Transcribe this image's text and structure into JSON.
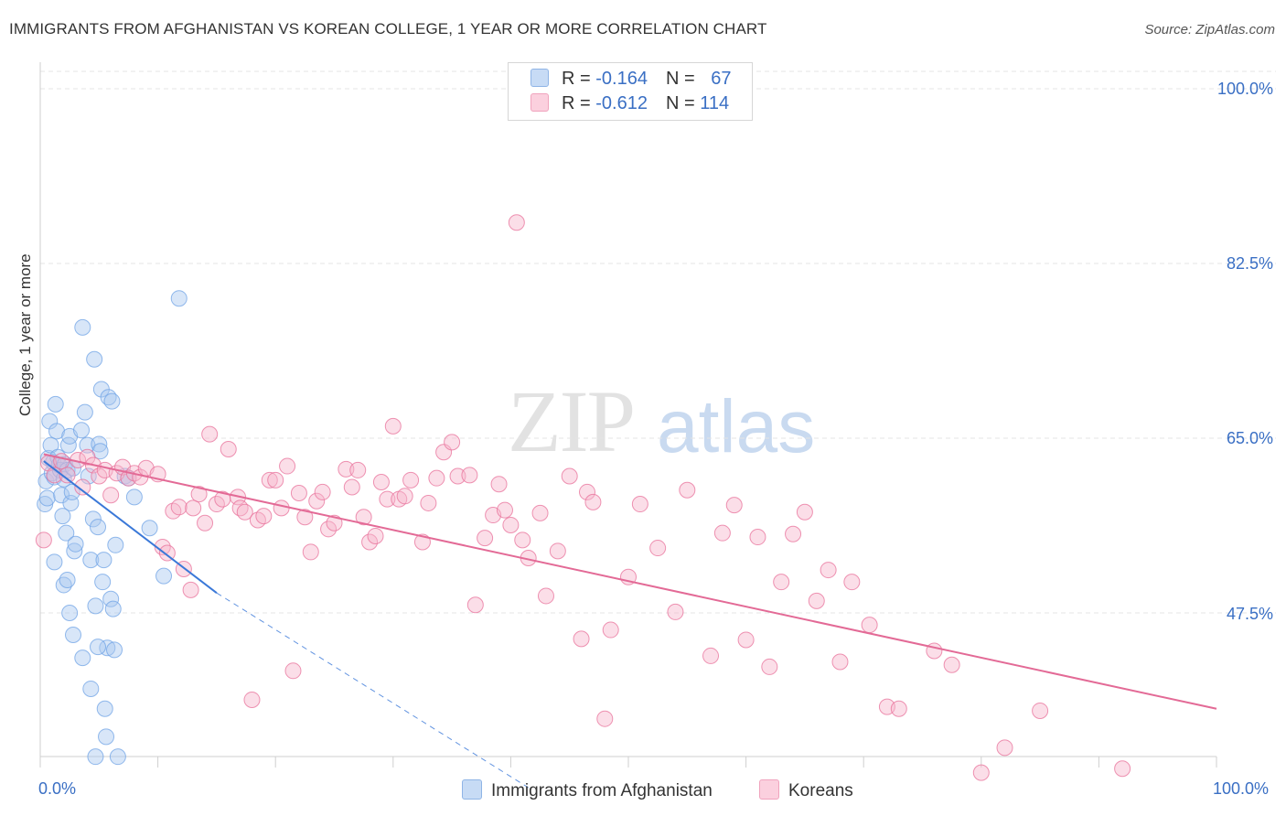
{
  "title": "IMMIGRANTS FROM AFGHANISTAN VS KOREAN COLLEGE, 1 YEAR OR MORE CORRELATION CHART",
  "source": "Source: ZipAtlas.com",
  "watermark": {
    "zip": "ZIP",
    "atlas": "atlas"
  },
  "legend": {
    "rows": [
      {
        "r_label": "R = ",
        "r_value": "-0.164",
        "n_label": "N = ",
        "n_value": "67",
        "color": "#a9c8f0"
      },
      {
        "r_label": "R = ",
        "r_value": "-0.612",
        "n_label": "N = ",
        "n_value": "114",
        "color": "#f7b6cb"
      }
    ]
  },
  "bottom_legend": [
    {
      "label": "Immigrants from Afghanistan",
      "color": "#a9c8f0"
    },
    {
      "label": "Koreans",
      "color": "#f7b6cb"
    }
  ],
  "chart_data": {
    "type": "scatter",
    "title": "IMMIGRANTS FROM AFGHANISTAN VS KOREAN COLLEGE, 1 YEAR OR MORE CORRELATION CHART",
    "xlabel": "",
    "ylabel": "College, 1 year or more",
    "xlim": [
      0,
      100
    ],
    "ylim": [
      30,
      100
    ],
    "x_tick_labels": [
      "0.0%",
      "100.0%"
    ],
    "y_ticks": [
      47.5,
      65.0,
      82.5,
      100.0
    ],
    "y_tick_labels": [
      "47.5%",
      "65.0%",
      "82.5%",
      "100.0%"
    ],
    "grid": true,
    "legend_position": "top-center",
    "series": [
      {
        "name": "Immigrants from Afghanistan",
        "color": "#6fa3e6",
        "fill": "#a9c8f0",
        "r": -0.164,
        "n": 67,
        "trend": {
          "x": [
            0.3,
            15.0
          ],
          "y": [
            62.7,
            49.5
          ],
          "dashed_extension_to": [
            41.5,
            30.0
          ]
        },
        "points": [
          [
            0.4,
            58.4
          ],
          [
            0.5,
            60.7
          ],
          [
            0.6,
            59.0
          ],
          [
            0.7,
            63.0
          ],
          [
            0.8,
            66.7
          ],
          [
            0.9,
            64.3
          ],
          [
            1.0,
            61.5
          ],
          [
            1.1,
            62.6
          ],
          [
            1.2,
            61.1
          ],
          [
            1.3,
            68.4
          ],
          [
            1.4,
            65.7
          ],
          [
            1.5,
            63.1
          ],
          [
            1.6,
            62.3
          ],
          [
            1.7,
            61.8
          ],
          [
            1.8,
            59.3
          ],
          [
            1.9,
            57.2
          ],
          [
            2.0,
            60.9
          ],
          [
            2.1,
            62.4
          ],
          [
            2.2,
            55.5
          ],
          [
            2.3,
            61.8
          ],
          [
            2.4,
            64.3
          ],
          [
            2.5,
            65.2
          ],
          [
            2.6,
            58.5
          ],
          [
            2.7,
            59.6
          ],
          [
            2.8,
            62.0
          ],
          [
            2.9,
            53.7
          ],
          [
            3.0,
            54.4
          ],
          [
            2.0,
            50.3
          ],
          [
            2.3,
            50.8
          ],
          [
            2.5,
            47.5
          ],
          [
            2.8,
            45.3
          ],
          [
            3.5,
            65.8
          ],
          [
            3.8,
            67.6
          ],
          [
            4.0,
            64.3
          ],
          [
            4.1,
            61.2
          ],
          [
            4.3,
            52.8
          ],
          [
            4.5,
            56.9
          ],
          [
            4.7,
            48.2
          ],
          [
            4.9,
            56.1
          ],
          [
            5.0,
            64.4
          ],
          [
            5.1,
            63.7
          ],
          [
            5.2,
            69.9
          ],
          [
            5.3,
            50.6
          ],
          [
            5.4,
            52.8
          ],
          [
            5.5,
            37.9
          ],
          [
            5.6,
            35.1
          ],
          [
            5.7,
            44.0
          ],
          [
            5.8,
            69.1
          ],
          [
            6.0,
            48.9
          ],
          [
            6.1,
            68.7
          ],
          [
            6.2,
            47.9
          ],
          [
            6.3,
            43.8
          ],
          [
            6.4,
            54.3
          ],
          [
            3.6,
            76.1
          ],
          [
            3.6,
            43.0
          ],
          [
            4.6,
            72.9
          ],
          [
            4.9,
            44.1
          ],
          [
            4.3,
            39.9
          ],
          [
            4.7,
            33.1
          ],
          [
            6.6,
            33.1
          ],
          [
            7.2,
            61.2
          ],
          [
            7.5,
            61.0
          ],
          [
            8.0,
            59.1
          ],
          [
            9.3,
            56.0
          ],
          [
            10.5,
            51.2
          ],
          [
            11.8,
            79.0
          ],
          [
            1.2,
            52.6
          ]
        ]
      },
      {
        "name": "Koreans",
        "color": "#e8709a",
        "fill": "#f7b6cb",
        "r": -0.612,
        "n": 114,
        "trend": {
          "x": [
            0.3,
            100.0
          ],
          "y": [
            63.4,
            37.9
          ]
        },
        "points": [
          [
            0.3,
            54.8
          ],
          [
            0.7,
            62.5
          ],
          [
            1.2,
            61.3
          ],
          [
            1.8,
            62.7
          ],
          [
            2.3,
            61.3
          ],
          [
            3.2,
            62.8
          ],
          [
            3.6,
            60.1
          ],
          [
            4.0,
            63.1
          ],
          [
            4.5,
            62.3
          ],
          [
            5.0,
            61.2
          ],
          [
            5.5,
            61.8
          ],
          [
            6.0,
            59.3
          ],
          [
            6.5,
            61.5
          ],
          [
            7.0,
            62.1
          ],
          [
            7.5,
            61.0
          ],
          [
            8.0,
            61.5
          ],
          [
            8.5,
            61.1
          ],
          [
            9.0,
            62.0
          ],
          [
            10.0,
            61.4
          ],
          [
            10.4,
            54.1
          ],
          [
            10.8,
            53.5
          ],
          [
            11.3,
            57.7
          ],
          [
            11.8,
            58.1
          ],
          [
            12.2,
            51.9
          ],
          [
            12.8,
            49.8
          ],
          [
            13.0,
            58.0
          ],
          [
            13.5,
            59.4
          ],
          [
            14.0,
            56.5
          ],
          [
            14.4,
            65.4
          ],
          [
            15.0,
            58.4
          ],
          [
            15.5,
            58.9
          ],
          [
            16.0,
            63.9
          ],
          [
            16.8,
            59.1
          ],
          [
            17.0,
            58.0
          ],
          [
            17.4,
            57.6
          ],
          [
            18.0,
            38.8
          ],
          [
            18.5,
            56.8
          ],
          [
            19.0,
            57.2
          ],
          [
            19.5,
            60.8
          ],
          [
            20.0,
            60.8
          ],
          [
            20.5,
            58.0
          ],
          [
            21.0,
            62.2
          ],
          [
            21.5,
            41.7
          ],
          [
            22.0,
            59.5
          ],
          [
            22.5,
            57.1
          ],
          [
            23.0,
            53.6
          ],
          [
            23.5,
            58.7
          ],
          [
            24.0,
            59.6
          ],
          [
            24.5,
            55.9
          ],
          [
            25.0,
            56.5
          ],
          [
            26.0,
            61.9
          ],
          [
            26.5,
            60.1
          ],
          [
            27.0,
            61.8
          ],
          [
            27.5,
            57.1
          ],
          [
            28.0,
            54.6
          ],
          [
            28.5,
            55.2
          ],
          [
            29.0,
            60.6
          ],
          [
            29.5,
            58.9
          ],
          [
            30.0,
            66.2
          ],
          [
            30.5,
            58.9
          ],
          [
            31.0,
            59.2
          ],
          [
            31.5,
            60.8
          ],
          [
            32.5,
            54.6
          ],
          [
            33.0,
            58.5
          ],
          [
            33.7,
            61.0
          ],
          [
            34.3,
            63.6
          ],
          [
            35.0,
            64.6
          ],
          [
            35.5,
            61.2
          ],
          [
            36.5,
            61.3
          ],
          [
            37.0,
            48.3
          ],
          [
            37.8,
            55.0
          ],
          [
            38.5,
            57.3
          ],
          [
            39.0,
            60.4
          ],
          [
            39.5,
            57.8
          ],
          [
            40.0,
            56.3
          ],
          [
            40.5,
            86.6
          ],
          [
            41.0,
            54.8
          ],
          [
            41.5,
            53.0
          ],
          [
            42.5,
            57.5
          ],
          [
            43.0,
            49.2
          ],
          [
            44.0,
            53.7
          ],
          [
            45.0,
            61.2
          ],
          [
            46.0,
            44.9
          ],
          [
            46.5,
            59.6
          ],
          [
            47.0,
            58.6
          ],
          [
            48.0,
            36.9
          ],
          [
            48.5,
            45.8
          ],
          [
            50.0,
            51.1
          ],
          [
            51.0,
            58.4
          ],
          [
            52.5,
            54.0
          ],
          [
            54.0,
            47.6
          ],
          [
            55.0,
            59.8
          ],
          [
            57.0,
            43.2
          ],
          [
            58.0,
            55.5
          ],
          [
            59.0,
            58.3
          ],
          [
            60.0,
            44.8
          ],
          [
            61.0,
            55.1
          ],
          [
            62.0,
            42.1
          ],
          [
            63.0,
            50.6
          ],
          [
            64.0,
            55.4
          ],
          [
            65.0,
            57.6
          ],
          [
            66.0,
            48.7
          ],
          [
            67.0,
            51.8
          ],
          [
            68.0,
            42.6
          ],
          [
            69.0,
            50.6
          ],
          [
            70.5,
            46.3
          ],
          [
            72.0,
            38.1
          ],
          [
            73.0,
            37.9
          ],
          [
            76.0,
            43.7
          ],
          [
            77.5,
            42.3
          ],
          [
            80.0,
            31.5
          ],
          [
            82.0,
            34.0
          ],
          [
            85.0,
            37.7
          ],
          [
            92.0,
            31.9
          ]
        ]
      }
    ]
  }
}
